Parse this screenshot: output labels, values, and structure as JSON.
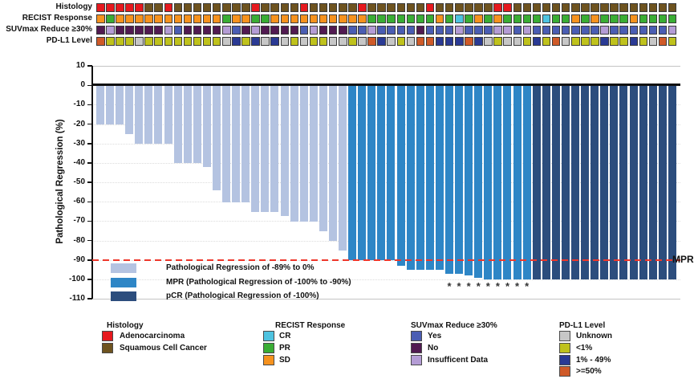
{
  "tracks": {
    "rows": [
      {
        "id": "histology",
        "label": "Histology",
        "values": [
          "A",
          "A",
          "A",
          "A",
          "A",
          "S",
          "S",
          "A",
          "S",
          "S",
          "S",
          "S",
          "S",
          "S",
          "S",
          "S",
          "A",
          "S",
          "S",
          "S",
          "S",
          "A",
          "S",
          "S",
          "S",
          "S",
          "S",
          "A",
          "S",
          "S",
          "S",
          "S",
          "S",
          "S",
          "A",
          "S",
          "S",
          "S",
          "S",
          "S",
          "S",
          "A",
          "A",
          "S",
          "S",
          "S",
          "S",
          "S",
          "S",
          "S",
          "S",
          "S",
          "S",
          "S",
          "S",
          "S",
          "S",
          "S",
          "S",
          "S"
        ]
      },
      {
        "id": "recist",
        "label": "RECIST Response",
        "values": [
          "D",
          "P",
          "D",
          "D",
          "D",
          "D",
          "D",
          "D",
          "D",
          "D",
          "D",
          "D",
          "D",
          "P",
          "D",
          "D",
          "P",
          "P",
          "D",
          "D",
          "D",
          "D",
          "D",
          "D",
          "D",
          "D",
          "D",
          "D",
          "P",
          "P",
          "P",
          "P",
          "P",
          "P",
          "P",
          "D",
          "P",
          "C",
          "P",
          "D",
          "P",
          "D",
          "P",
          "P",
          "P",
          "P",
          "C",
          "P",
          "P",
          "D",
          "P",
          "D",
          "P",
          "P",
          "P",
          "D",
          "P",
          "P",
          "P",
          "P"
        ]
      },
      {
        "id": "suvmax",
        "label": "SUVmax Reduce ≥30%",
        "values": [
          "N",
          "I",
          "N",
          "N",
          "N",
          "N",
          "N",
          "I",
          "Y",
          "N",
          "N",
          "N",
          "N",
          "I",
          "Y",
          "N",
          "I",
          "N",
          "N",
          "N",
          "N",
          "Y",
          "I",
          "N",
          "N",
          "N",
          "Y",
          "Y",
          "I",
          "Y",
          "Y",
          "Y",
          "Y",
          "N",
          "Y",
          "Y",
          "Y",
          "I",
          "Y",
          "Y",
          "Y",
          "I",
          "I",
          "Y",
          "I",
          "Y",
          "Y",
          "Y",
          "Y",
          "Y",
          "Y",
          "Y",
          "I",
          "Y",
          "Y",
          "Y",
          "Y",
          "Y",
          "Y",
          "I"
        ]
      },
      {
        "id": "pdl1",
        "label": "PD-L1 Level",
        "values": [
          "H",
          "L",
          "L",
          "L",
          "U",
          "L",
          "L",
          "L",
          "L",
          "L",
          "L",
          "L",
          "L",
          "U",
          "M",
          "L",
          "M",
          "U",
          "M",
          "U",
          "L",
          "U",
          "L",
          "L",
          "U",
          "U",
          "L",
          "U",
          "H",
          "M",
          "U",
          "L",
          "U",
          "H",
          "H",
          "M",
          "M",
          "M",
          "H",
          "M",
          "U",
          "L",
          "U",
          "U",
          "L",
          "M",
          "L",
          "H",
          "U",
          "L",
          "L",
          "L",
          "M",
          "L",
          "L",
          "M",
          "L",
          "U",
          "H",
          "L"
        ]
      }
    ],
    "palettes": {
      "histology": {
        "A": "#e6191e",
        "S": "#6e531f"
      },
      "recist": {
        "C": "#4ec3e0",
        "P": "#3aad34",
        "D": "#f6921e"
      },
      "suvmax": {
        "Y": "#4a5db3",
        "N": "#511a51",
        "I": "#b49cd5"
      },
      "pdl1": {
        "U": "#c7c7c7",
        "L": "#bfc21c",
        "M": "#2a3a94",
        "H": "#cf5a28"
      }
    }
  },
  "chart_data": {
    "type": "bar",
    "title": "",
    "ylabel": "Pathological Regression (%)",
    "ylim": [
      -110,
      10
    ],
    "yticks": [
      10,
      0,
      -10,
      -20,
      -30,
      -40,
      -50,
      -60,
      -70,
      -80,
      -90,
      -100,
      -110
    ],
    "grid": "dotted-horizontal",
    "values": [
      -20,
      -20,
      -20,
      -25,
      -30,
      -30,
      -30,
      -30,
      -40,
      -40,
      -40,
      -42,
      -54,
      -60,
      -60,
      -60,
      -65,
      -65,
      -65,
      -67,
      -70,
      -70,
      -70,
      -75,
      -80,
      -85,
      -90,
      -90,
      -90,
      -90,
      -90,
      -93,
      -95,
      -95,
      -95,
      -95,
      -97,
      -97,
      -98,
      -99,
      -100,
      -100,
      -100,
      -100,
      -100,
      -100,
      -100,
      -100,
      -100,
      -100,
      -100,
      -100,
      -100,
      -100,
      -100,
      -100,
      -100,
      -100,
      -100,
      -100
    ],
    "groups": [
      "reg",
      "reg",
      "reg",
      "reg",
      "reg",
      "reg",
      "reg",
      "reg",
      "reg",
      "reg",
      "reg",
      "reg",
      "reg",
      "reg",
      "reg",
      "reg",
      "reg",
      "reg",
      "reg",
      "reg",
      "reg",
      "reg",
      "reg",
      "reg",
      "reg",
      "reg",
      "mpr",
      "mpr",
      "mpr",
      "mpr",
      "mpr",
      "mpr",
      "mpr",
      "mpr",
      "mpr",
      "mpr",
      "mpr",
      "mpr",
      "mpr",
      "mpr",
      "mpr",
      "mpr",
      "mpr",
      "mpr",
      "mpr",
      "pcr",
      "pcr",
      "pcr",
      "pcr",
      "pcr",
      "pcr",
      "pcr",
      "pcr",
      "pcr",
      "pcr",
      "pcr",
      "pcr",
      "pcr",
      "pcr",
      "pcr"
    ],
    "colors": {
      "reg": "#b4c3e1",
      "mpr": "#2e86c6",
      "pcr": "#2c4d7d"
    },
    "asterisk_indices": [
      36,
      37,
      38,
      39,
      40,
      41,
      42,
      43,
      44
    ],
    "asterisk_marker": "*",
    "reference_line": {
      "value": -90,
      "label": "MPR",
      "color": "#ee372b",
      "style": "dashed"
    }
  },
  "plot_legend": {
    "items": [
      {
        "key": "reg",
        "label": "Pathological Regression of -89% to 0%"
      },
      {
        "key": "mpr",
        "label": "MPR (Pathological Regression of -100% to -90%)"
      },
      {
        "key": "pcr",
        "label": "pCR (Pathological Regression of -100%)"
      }
    ]
  },
  "bottom_legends": [
    {
      "title": "Histology",
      "items": [
        {
          "label": "Adenocarcinoma",
          "color": "#e6191e"
        },
        {
          "label": "Squamous Cell Cancer",
          "color": "#6e531f"
        }
      ]
    },
    {
      "title": "RECIST Response",
      "items": [
        {
          "label": "CR",
          "color": "#4ec3e0"
        },
        {
          "label": "PR",
          "color": "#3aad34"
        },
        {
          "label": "SD",
          "color": "#f6921e"
        }
      ]
    },
    {
      "title": "SUVmax Reduce ≥30%",
      "items": [
        {
          "label": "Yes",
          "color": "#4a5db3"
        },
        {
          "label": "No",
          "color": "#511a51"
        },
        {
          "label": "Insufficent Data",
          "color": "#b49cd5"
        }
      ]
    },
    {
      "title": "PD-L1 Level",
      "items": [
        {
          "label": "Unknown",
          "color": "#c7c7c7"
        },
        {
          "label": "<1%",
          "color": "#bfc21c"
        },
        {
          "label": "1% - 49%",
          "color": "#2a3a94"
        },
        {
          "label": ">=50%",
          "color": "#cf5a28"
        }
      ]
    }
  ]
}
